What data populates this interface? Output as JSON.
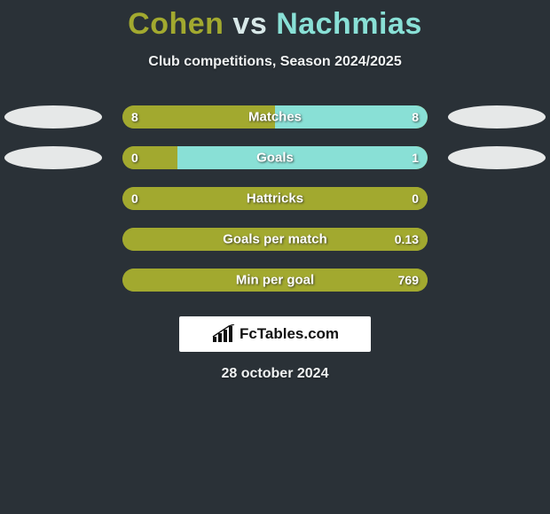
{
  "colors": {
    "background": "#2a3137",
    "player1": "#a2a92f",
    "player2": "#89e0d6",
    "ellipse_left": "#e6e8e8",
    "ellipse_right": "#e6e8e8",
    "text_light": "#f0f2f2"
  },
  "header": {
    "player1": "Cohen",
    "vs": "vs",
    "player2": "Nachmias",
    "subtitle": "Club competitions, Season 2024/2025"
  },
  "rows": [
    {
      "label": "Matches",
      "left_val": "8",
      "right_val": "8",
      "left_pct": 50,
      "right_pct": 50
    },
    {
      "label": "Goals",
      "left_val": "0",
      "right_val": "1",
      "left_pct": 18,
      "right_pct": 82
    },
    {
      "label": "Hattricks",
      "left_val": "0",
      "right_val": "0",
      "left_pct": 100,
      "right_pct": 0
    },
    {
      "label": "Goals per match",
      "left_val": "",
      "right_val": "0.13",
      "left_pct": 100,
      "right_pct": 0
    },
    {
      "label": "Min per goal",
      "left_val": "",
      "right_val": "769",
      "left_pct": 100,
      "right_pct": 0
    }
  ],
  "footer": {
    "logo_text": "FcTables.com",
    "date": "28 october 2024"
  }
}
